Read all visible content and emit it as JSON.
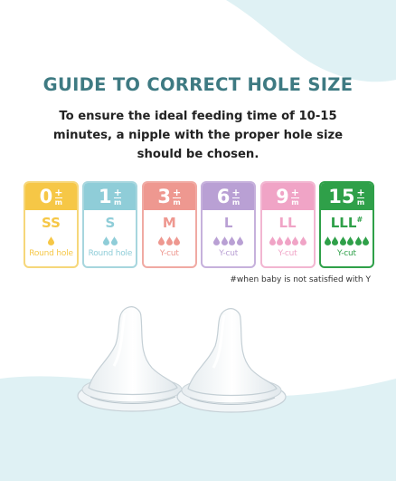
{
  "title": "GUIDE TO CORRECT HOLE SIZE",
  "subtitle": "To ensure the ideal feeding time of 10-15 minutes, a nipple with the proper hole size should be chosen.",
  "cards": [
    {
      "age": "0",
      "plus": "+",
      "unit": "m",
      "size": "SS",
      "drop_count": 1,
      "hole": "Round hole",
      "color": "#f6c746",
      "drop_color": "#f6c746",
      "text_color": "#f6c746",
      "border": "#f6d77a"
    },
    {
      "age": "1",
      "plus": "+",
      "unit": "m",
      "size": "S",
      "drop_count": 2,
      "hole": "Round hole",
      "color": "#8fcdd8",
      "drop_color": "#8fcdd8",
      "text_color": "#8fcdd8",
      "border": "#a7d6de"
    },
    {
      "age": "3",
      "plus": "+",
      "unit": "m",
      "size": "M",
      "drop_count": 3,
      "hole": "Y-cut",
      "color": "#ee9890",
      "drop_color": "#ee9890",
      "text_color": "#ee9890",
      "border": "#f0aaa3"
    },
    {
      "age": "6",
      "plus": "+",
      "unit": "m",
      "size": "L",
      "drop_count": 4,
      "hole": "Y-cut",
      "color": "#b9a0d4",
      "drop_color": "#b9a0d4",
      "text_color": "#b9a0d4",
      "border": "#c6b1dc"
    },
    {
      "age": "9",
      "plus": "+",
      "unit": "m",
      "size": "LL",
      "drop_count": 5,
      "hole": "Y-cut",
      "color": "#f0a4c6",
      "drop_color": "#f0a4c6",
      "text_color": "#f0a4c6",
      "border": "#f2b6d1"
    },
    {
      "age": "15",
      "plus": "+",
      "unit": "m",
      "size": "LLL",
      "size_mark": "#",
      "drop_count": 6,
      "hole": "Y-cut",
      "color": "#2fa049",
      "drop_color": "#2fa049",
      "text_color": "#2fa049",
      "border": "#2fa049"
    }
  ],
  "footnote": "#when baby is not satisfied with Y",
  "colors": {
    "title": "#3e7a82",
    "wave": "#dff1f4"
  }
}
